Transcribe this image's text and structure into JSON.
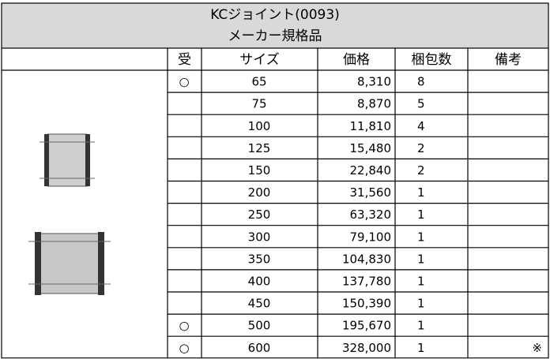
{
  "header": {
    "title": "KCジョイント(0093)",
    "subtitle": "メーカー規格品"
  },
  "table": {
    "columns": [
      "受",
      "サイズ",
      "価格",
      "梱包数",
      "備考"
    ],
    "rows": [
      {
        "uke": "○",
        "size": 65,
        "price": "8,310",
        "packs": 8
      },
      {
        "size": 75,
        "price": "8,870",
        "packs": 5
      },
      {
        "size": 100,
        "price": "11,810",
        "packs": 4
      },
      {
        "size": 125,
        "price": "15,480",
        "packs": 2
      },
      {
        "size": 150,
        "price": "22,840",
        "packs": 2
      },
      {
        "size": 200,
        "price": "31,560",
        "packs": 1
      },
      {
        "size": 250,
        "price": "63,320",
        "packs": 1
      },
      {
        "size": 300,
        "price": "79,100",
        "packs": 1
      },
      {
        "size": 350,
        "price": "104,830",
        "packs": 1
      },
      {
        "size": 400,
        "price": "137,780",
        "packs": 1
      },
      {
        "size": 450,
        "price": "150,390",
        "packs": 1
      },
      {
        "uke": "○",
        "size": 500,
        "price": "195,670",
        "packs": 1
      },
      {
        "uke": "○",
        "size": 600,
        "price": "328,000",
        "packs": 1,
        "note": "※"
      }
    ]
  }
}
